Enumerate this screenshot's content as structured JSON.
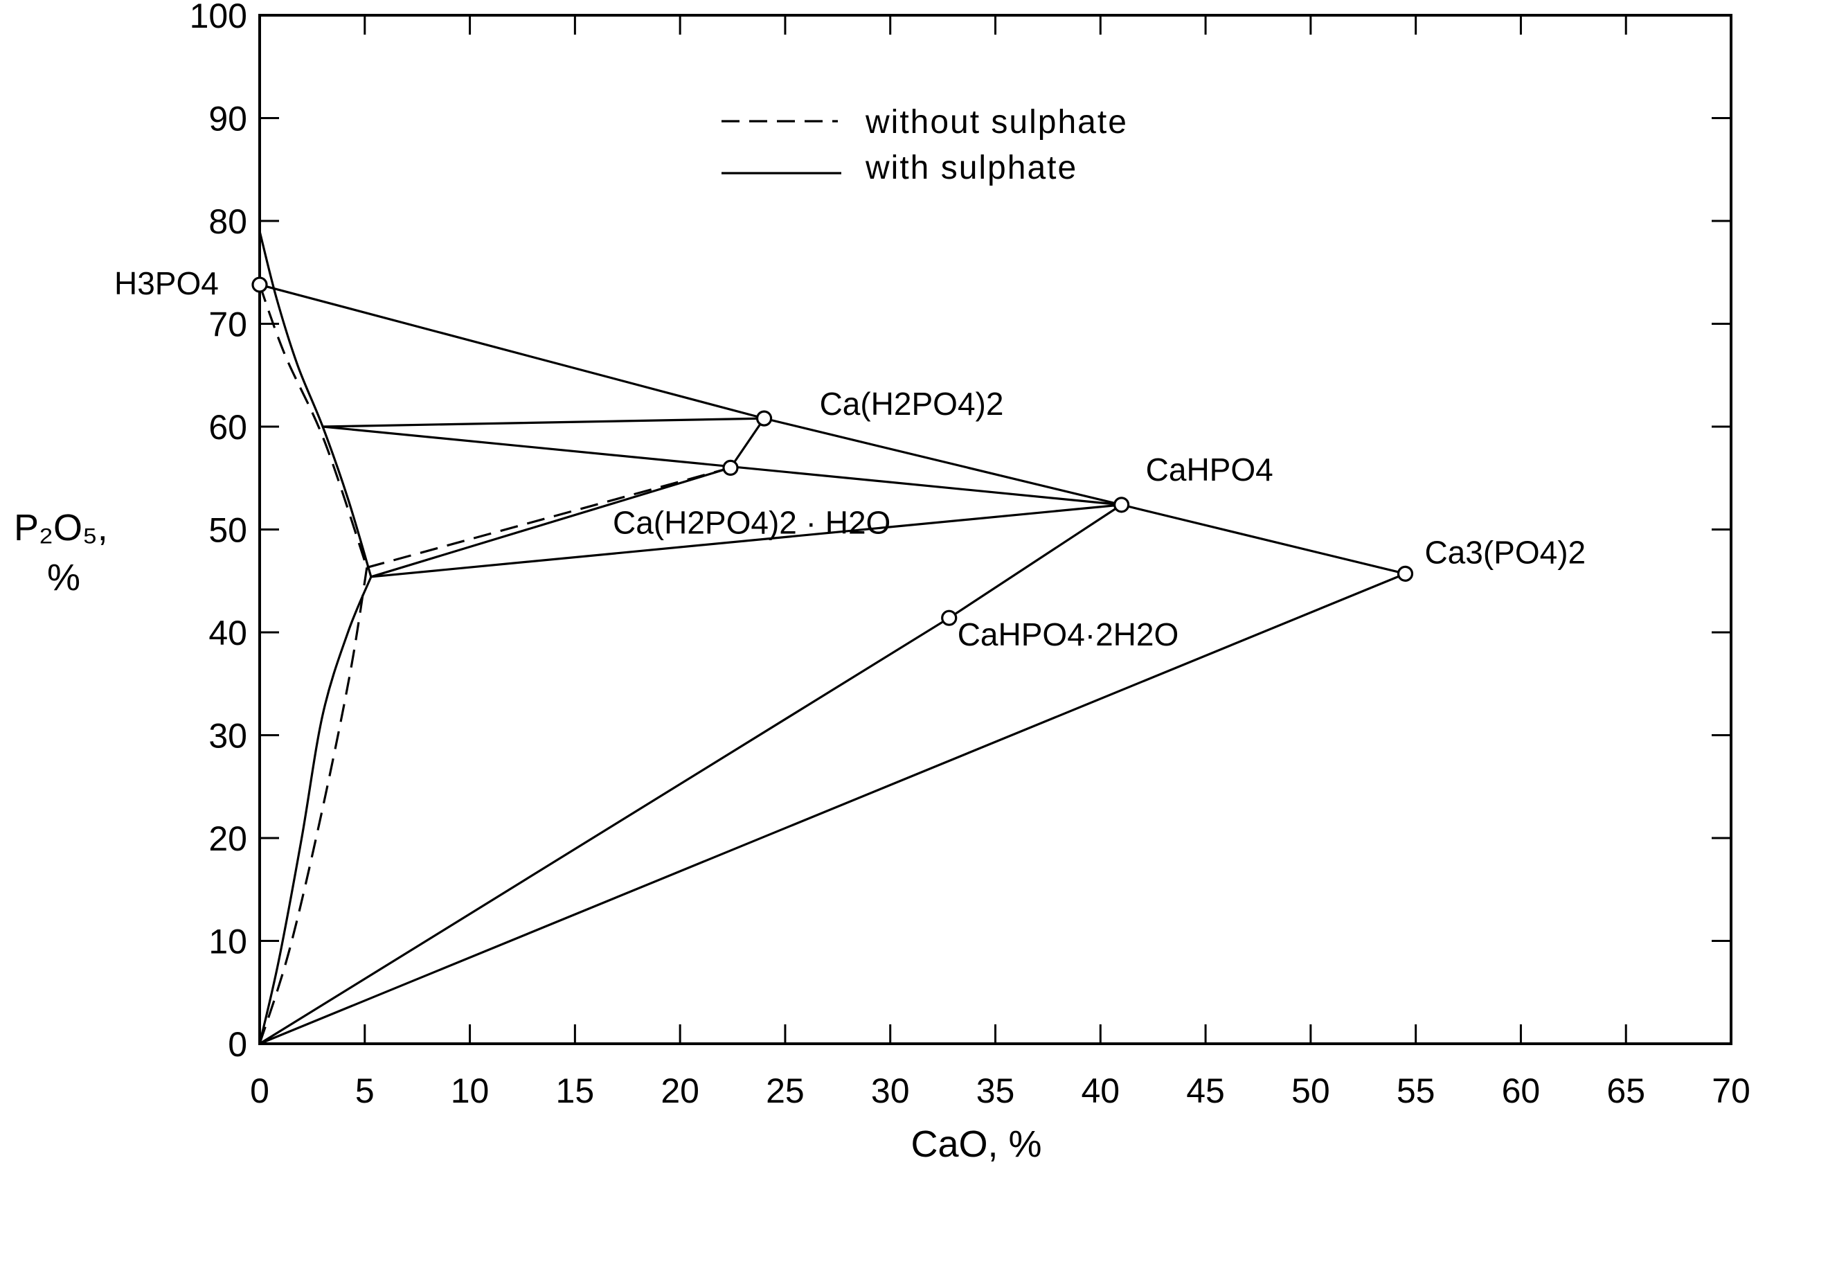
{
  "chart_data": {
    "type": "diagram",
    "xlabel": "CaO, %",
    "ylabel": "P₂O₅, %",
    "xlim": [
      0,
      70
    ],
    "ylim": [
      0,
      100
    ],
    "x_ticks": [
      0,
      5,
      10,
      15,
      20,
      25,
      30,
      35,
      40,
      45,
      50,
      55,
      60,
      65,
      70
    ],
    "y_ticks": [
      0,
      10,
      20,
      30,
      40,
      50,
      60,
      70,
      80,
      90,
      100
    ],
    "legend": {
      "position": "top-center",
      "entries": [
        {
          "label": "without sulphate",
          "style": "dashed"
        },
        {
          "label": "with sulphate",
          "style": "solid"
        }
      ]
    },
    "points": [
      {
        "id": "h3po4",
        "label": "H3PO4",
        "x": 0,
        "y": 73.8
      },
      {
        "id": "mcp",
        "label": "Ca(H2PO4)2",
        "x": 24.0,
        "y": 60.8
      },
      {
        "id": "mcpm",
        "label": "Ca(H2PO4)2 · H2O",
        "x": 22.4,
        "y": 56.0
      },
      {
        "id": "dcpa",
        "label": "CaHPO4",
        "x": 41.0,
        "y": 52.4
      },
      {
        "id": "dcpd",
        "label": "CaHPO4·2H2O",
        "x": 32.8,
        "y": 41.4
      },
      {
        "id": "tcp",
        "label": "Ca3(PO4)2",
        "x": 54.5,
        "y": 45.7
      }
    ],
    "series": [
      {
        "style": "solid",
        "points": [
          [
            0,
            73.8
          ],
          [
            24.0,
            60.8
          ],
          [
            41.0,
            52.4
          ],
          [
            54.5,
            45.7
          ]
        ]
      },
      {
        "style": "solid",
        "points": [
          [
            24.0,
            60.8
          ],
          [
            22.4,
            56.0
          ]
        ]
      },
      {
        "style": "solid",
        "points": [
          [
            3.0,
            60.0
          ],
          [
            24.0,
            60.8
          ]
        ]
      },
      {
        "style": "solid",
        "points": [
          [
            3.0,
            60.0
          ],
          [
            41.0,
            52.4
          ]
        ]
      },
      {
        "style": "solid",
        "points": [
          [
            5.3,
            45.4
          ],
          [
            22.4,
            56.0
          ]
        ]
      },
      {
        "style": "solid",
        "points": [
          [
            5.3,
            45.4
          ],
          [
            41.0,
            52.4
          ]
        ]
      },
      {
        "style": "solid",
        "points": [
          [
            0,
            0
          ],
          [
            32.8,
            41.4
          ],
          [
            41.0,
            52.4
          ]
        ]
      },
      {
        "style": "solid",
        "points": [
          [
            0,
            0
          ],
          [
            54.5,
            45.7
          ]
        ]
      },
      {
        "style": "solid",
        "curve": true,
        "points": [
          [
            0,
            79
          ],
          [
            0.8,
            72.5
          ],
          [
            1.8,
            66
          ],
          [
            3.0,
            60.0
          ],
          [
            4.2,
            53
          ],
          [
            5.3,
            45.4
          ]
        ]
      },
      {
        "style": "solid",
        "curve": true,
        "points": [
          [
            5.3,
            45.4
          ],
          [
            4.2,
            40
          ],
          [
            3.0,
            32
          ],
          [
            2.0,
            20
          ],
          [
            0.9,
            8
          ],
          [
            0,
            0
          ]
        ]
      },
      {
        "style": "dashed",
        "curve": true,
        "points": [
          [
            0,
            73.8
          ],
          [
            1.2,
            67
          ],
          [
            3.1,
            58.5
          ],
          [
            5.1,
            46.3
          ]
        ]
      },
      {
        "style": "dashed",
        "points": [
          [
            5.1,
            46.3
          ],
          [
            22.4,
            56.0
          ]
        ]
      },
      {
        "style": "dashed",
        "curve": true,
        "points": [
          [
            5.1,
            46.3
          ],
          [
            4.3,
            36
          ],
          [
            2.9,
            22
          ],
          [
            1.4,
            9
          ],
          [
            0,
            0
          ]
        ]
      }
    ]
  }
}
